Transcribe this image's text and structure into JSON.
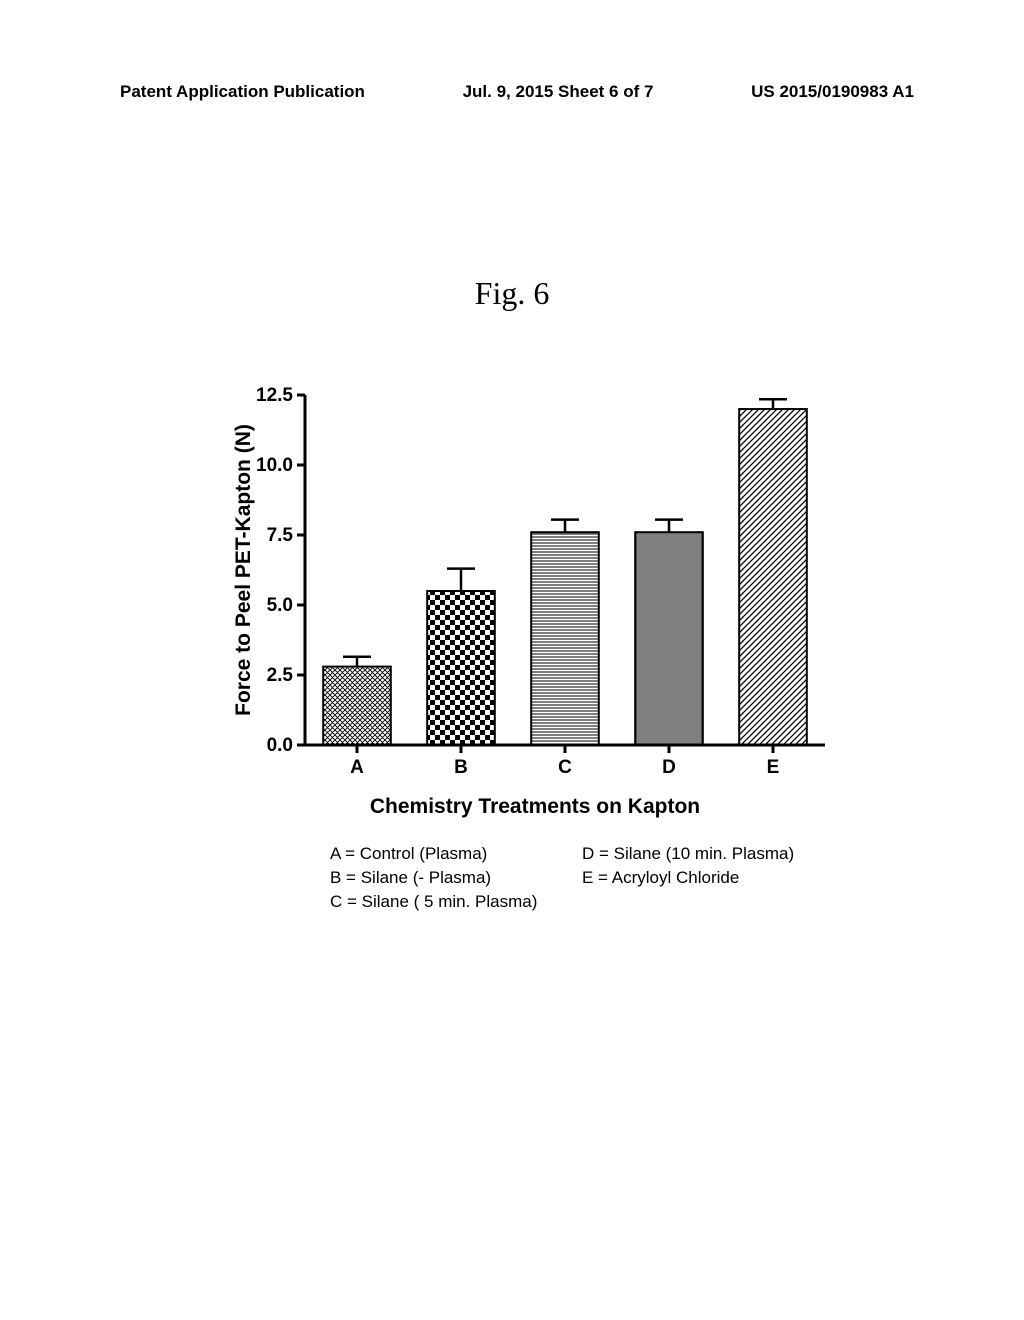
{
  "header": {
    "left": "Patent Application Publication",
    "center": "Jul. 9, 2015   Sheet 6 of 7",
    "right": "US 2015/0190983 A1"
  },
  "figure_title": "Fig. 6",
  "chart": {
    "type": "bar",
    "ylabel": "Force to Peel PET-Kapton (N)",
    "xlabel": "Chemistry Treatments on Kapton",
    "ylim": [
      0.0,
      12.5
    ],
    "yticks": [
      0.0,
      2.5,
      5.0,
      7.5,
      10.0,
      12.5
    ],
    "ytick_labels": [
      "0.0",
      "2.5",
      "5.0",
      "7.5",
      "10.0",
      "12.5"
    ],
    "categories": [
      "A",
      "B",
      "C",
      "D",
      "E"
    ],
    "values": [
      2.8,
      5.5,
      7.6,
      7.6,
      12.0
    ],
    "errors": [
      0.35,
      0.8,
      0.45,
      0.45,
      0.35
    ],
    "patterns": [
      "crosshatch-dense",
      "checkerboard",
      "horizontal-lines",
      "vertical-lines",
      "diagonal-lines"
    ],
    "bar_width": 0.65,
    "axis_width": 3,
    "bar_stroke_width": 2,
    "error_cap_width": 28,
    "error_stroke_width": 2.5,
    "tick_fontsize": 19,
    "label_fontsize": 21,
    "background_color": "#ffffff",
    "axis_color": "#000000"
  },
  "legend": {
    "items": [
      {
        "key": "A",
        "text": "A = Control (Plasma)"
      },
      {
        "key": "B",
        "text": "B = Silane (- Plasma)"
      },
      {
        "key": "C",
        "text": "C = Silane ( 5 min. Plasma)"
      },
      {
        "key": "D",
        "text": "D = Silane (10 min. Plasma)"
      },
      {
        "key": "E",
        "text": "E = Acryloyl Chloride"
      }
    ]
  }
}
